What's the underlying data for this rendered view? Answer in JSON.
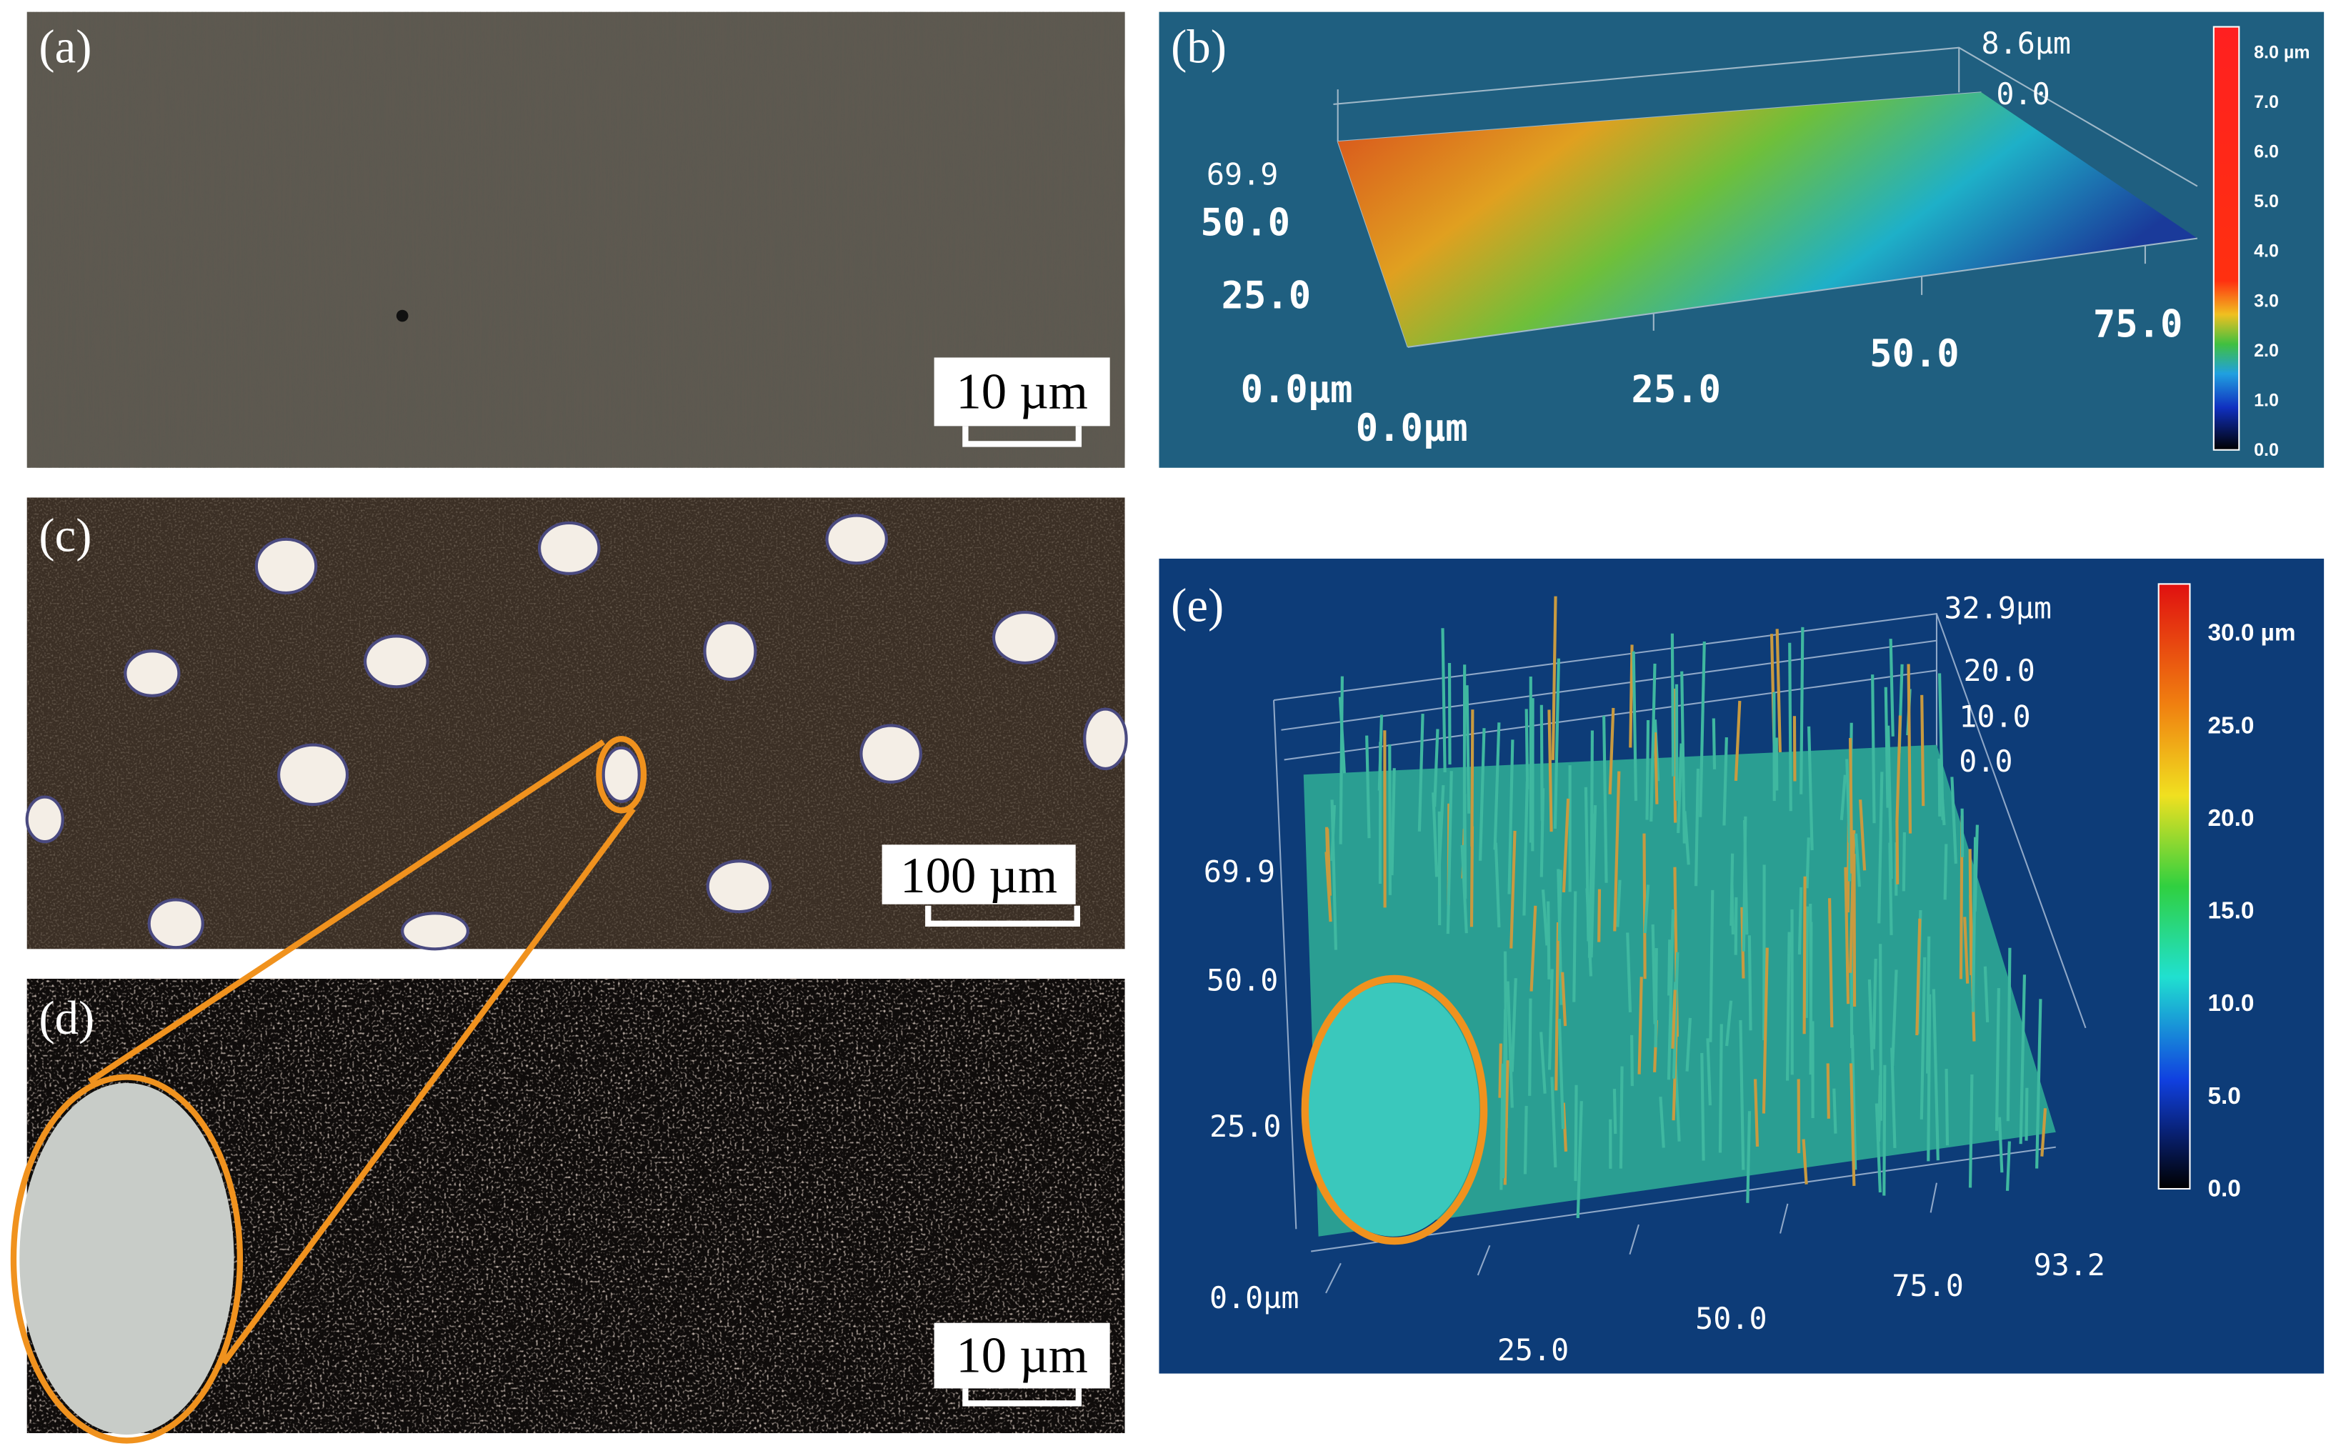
{
  "panel_a": {
    "label": "(a)",
    "scale_bar": "10 µm"
  },
  "panel_b": {
    "label": "(b)",
    "z_labels": [
      "8.6µm",
      "0.0"
    ],
    "y_labels": [
      "69.9",
      "50.0",
      "25.0",
      "0.0µm"
    ],
    "x_labels": [
      "0.0µm",
      "25.0",
      "50.0",
      "75.0"
    ],
    "colorbar_labels": [
      "8.0 µm",
      "7.0",
      "6.0",
      "5.0",
      "4.0",
      "3.0",
      "2.0",
      "1.0",
      "0.0"
    ]
  },
  "panel_c": {
    "label": "(c)",
    "scale_bar": "100 µm"
  },
  "panel_d": {
    "label": "(d)",
    "scale_bar": "10 µm"
  },
  "panel_e": {
    "label": "(e)",
    "z_labels": [
      "32.9µm",
      "20.0",
      "10.0",
      "0.0"
    ],
    "y_labels": [
      "69.9",
      "50.0",
      "25.0",
      "0.0µm"
    ],
    "x_labels": [
      "25.0",
      "50.0",
      "75.0",
      "93.2"
    ],
    "colorbar_labels": [
      "30.0 µm",
      "25.0",
      "20.0",
      "15.0",
      "10.0",
      "5.0",
      "0.0"
    ]
  }
}
